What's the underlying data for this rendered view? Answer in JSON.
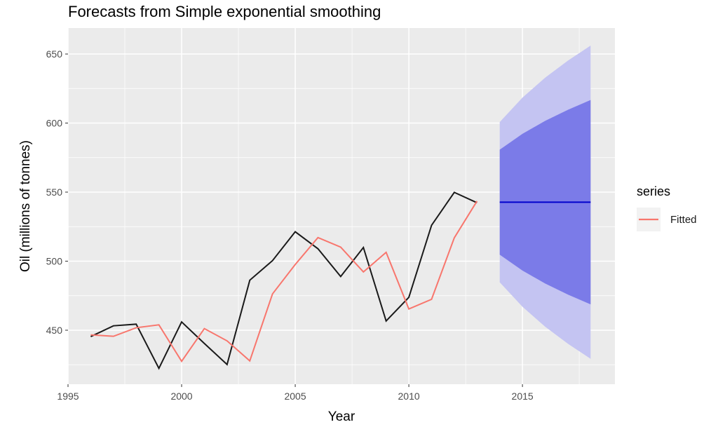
{
  "chart_data": {
    "type": "line",
    "title": "Forecasts from Simple exponential smoothing",
    "xlabel": "Year",
    "ylabel": "Oil (millions of tonnes)",
    "xlim": [
      1995,
      2019.07
    ],
    "ylim": [
      410.9,
      668.8
    ],
    "x_ticks": [
      1995,
      2000,
      2005,
      2010,
      2015
    ],
    "y_ticks": [
      450,
      500,
      550,
      600,
      650
    ],
    "grid": true,
    "legend": {
      "title": "series",
      "position": "right",
      "entries": [
        {
          "label": "Fitted",
          "color": "#F8766D"
        }
      ]
    },
    "observed": {
      "name": "Oil",
      "color": "#1a1a1a",
      "x": [
        1996,
        1997,
        1998,
        1999,
        2000,
        2001,
        2002,
        2003,
        2004,
        2005,
        2006,
        2007,
        2008,
        2009,
        2010,
        2011,
        2012,
        2013
      ],
      "y": [
        445.4,
        453.2,
        454.4,
        422.4,
        456.0,
        440.4,
        425.2,
        486.2,
        500.4,
        521.3,
        509.0,
        488.9,
        509.9,
        456.7,
        473.8,
        526.0,
        549.8,
        542.3
      ]
    },
    "fitted": {
      "name": "Fitted",
      "color": "#F8766D",
      "x": [
        1996,
        1997,
        1998,
        1999,
        2000,
        2001,
        2002,
        2003,
        2004,
        2005,
        2006,
        2007,
        2008,
        2009,
        2010,
        2011,
        2012,
        2013
      ],
      "y": [
        446.6,
        445.6,
        451.8,
        453.9,
        427.5,
        451.2,
        442.3,
        427.8,
        476.3,
        497.6,
        517.1,
        510.2,
        492.2,
        506.4,
        465.4,
        472.4,
        516.9,
        543.5
      ]
    },
    "forecast": {
      "color": "#0000CC",
      "x": [
        2014,
        2015,
        2016,
        2017,
        2018
      ],
      "mean": [
        542.7,
        542.7,
        542.7,
        542.7,
        542.7
      ],
      "lo80": [
        504.7,
        493.2,
        483.8,
        475.8,
        468.7
      ],
      "hi80": [
        580.7,
        592.2,
        601.6,
        609.6,
        616.7
      ],
      "lo95": [
        484.7,
        467.0,
        452.5,
        440.2,
        429.3
      ],
      "hi95": [
        600.7,
        618.4,
        632.9,
        645.2,
        656.1
      ],
      "color80": "#7B7BE8",
      "color95": "#C4C4F2"
    }
  }
}
